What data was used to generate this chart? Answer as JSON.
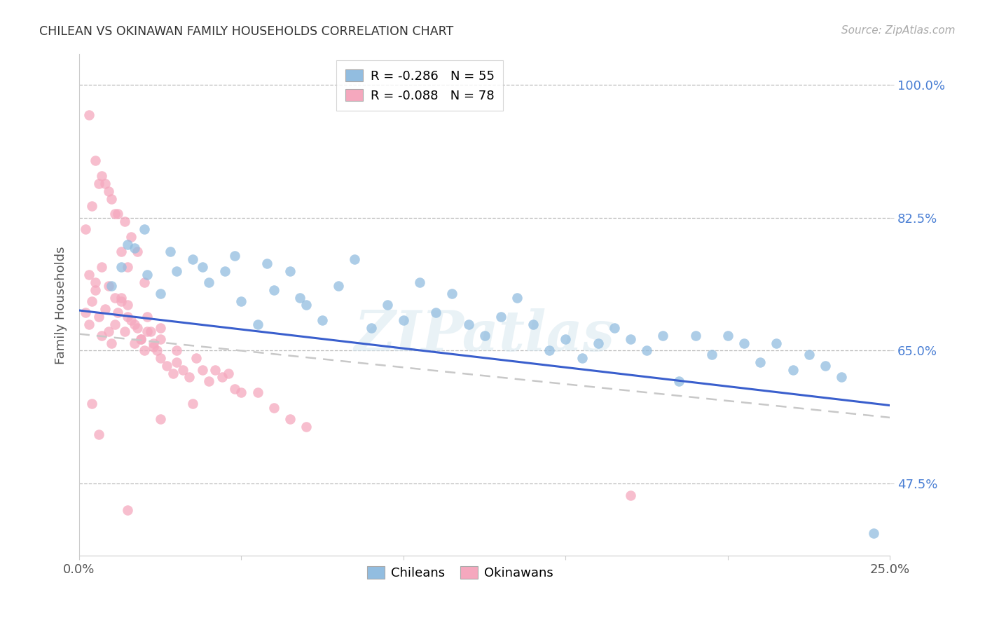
{
  "title": "CHILEAN VS OKINAWAN FAMILY HOUSEHOLDS CORRELATION CHART",
  "source": "Source: ZipAtlas.com",
  "ylabel": "Family Households",
  "watermark": "ZIPatlas",
  "xlim": [
    0.0,
    0.25
  ],
  "ylim": [
    0.38,
    1.04
  ],
  "xtick_positions": [
    0.0,
    0.05,
    0.1,
    0.15,
    0.2,
    0.25
  ],
  "xtick_labels": [
    "0.0%",
    "",
    "",
    "",
    "",
    "25.0%"
  ],
  "ytick_values": [
    0.475,
    0.65,
    0.825,
    1.0
  ],
  "ytick_labels": [
    "47.5%",
    "65.0%",
    "82.5%",
    "100.0%"
  ],
  "chilean_color": "#92bde0",
  "okinawan_color": "#f5a8be",
  "chilean_line_color": "#3a5fcd",
  "okinawan_line_color": "#c85080",
  "okinawan_dash_color": "#c8c8c8",
  "title_color": "#333333",
  "axis_label_color": "#555555",
  "tick_color_y": "#4a7fd4",
  "tick_color_x": "#555555",
  "grid_color": "#bbbbbb",
  "background": "#ffffff",
  "chilean_line_x0": 0.0,
  "chilean_line_y0": 0.703,
  "chilean_line_x1": 0.25,
  "chilean_line_y1": 0.578,
  "okinawan_line_x0": 0.0,
  "okinawan_line_y0": 0.672,
  "okinawan_line_x1": 0.25,
  "okinawan_line_y1": 0.562,
  "chilean_x": [
    0.01,
    0.013,
    0.017,
    0.021,
    0.025,
    0.03,
    0.035,
    0.04,
    0.045,
    0.05,
    0.055,
    0.06,
    0.065,
    0.07,
    0.075,
    0.08,
    0.085,
    0.09,
    0.095,
    0.1,
    0.105,
    0.11,
    0.115,
    0.12,
    0.125,
    0.13,
    0.135,
    0.14,
    0.145,
    0.15,
    0.155,
    0.16,
    0.165,
    0.17,
    0.175,
    0.18,
    0.185,
    0.19,
    0.195,
    0.2,
    0.205,
    0.21,
    0.215,
    0.22,
    0.225,
    0.23,
    0.235,
    0.015,
    0.02,
    0.028,
    0.038,
    0.048,
    0.058,
    0.245,
    0.068
  ],
  "chilean_y": [
    0.735,
    0.76,
    0.785,
    0.75,
    0.725,
    0.755,
    0.77,
    0.74,
    0.755,
    0.715,
    0.685,
    0.73,
    0.755,
    0.71,
    0.69,
    0.735,
    0.77,
    0.68,
    0.71,
    0.69,
    0.74,
    0.7,
    0.725,
    0.685,
    0.67,
    0.695,
    0.72,
    0.685,
    0.65,
    0.665,
    0.64,
    0.66,
    0.68,
    0.665,
    0.65,
    0.67,
    0.61,
    0.67,
    0.645,
    0.67,
    0.66,
    0.635,
    0.66,
    0.625,
    0.645,
    0.63,
    0.615,
    0.79,
    0.81,
    0.78,
    0.76,
    0.775,
    0.765,
    0.41,
    0.72
  ],
  "okinawan_x": [
    0.002,
    0.003,
    0.004,
    0.005,
    0.006,
    0.007,
    0.008,
    0.009,
    0.01,
    0.011,
    0.012,
    0.013,
    0.014,
    0.015,
    0.016,
    0.017,
    0.018,
    0.019,
    0.02,
    0.021,
    0.022,
    0.023,
    0.024,
    0.025,
    0.003,
    0.005,
    0.007,
    0.009,
    0.011,
    0.013,
    0.015,
    0.017,
    0.019,
    0.021,
    0.023,
    0.025,
    0.027,
    0.029,
    0.03,
    0.032,
    0.034,
    0.036,
    0.038,
    0.04,
    0.042,
    0.044,
    0.046,
    0.048,
    0.05,
    0.055,
    0.06,
    0.065,
    0.07,
    0.002,
    0.004,
    0.006,
    0.008,
    0.01,
    0.012,
    0.014,
    0.016,
    0.018,
    0.003,
    0.005,
    0.007,
    0.009,
    0.011,
    0.013,
    0.015,
    0.02,
    0.025,
    0.03,
    0.004,
    0.006,
    0.015,
    0.035,
    0.17,
    0.025
  ],
  "okinawan_y": [
    0.7,
    0.685,
    0.715,
    0.73,
    0.695,
    0.67,
    0.705,
    0.675,
    0.66,
    0.685,
    0.7,
    0.72,
    0.675,
    0.71,
    0.69,
    0.66,
    0.68,
    0.665,
    0.65,
    0.695,
    0.675,
    0.66,
    0.65,
    0.665,
    0.75,
    0.74,
    0.76,
    0.735,
    0.72,
    0.715,
    0.695,
    0.685,
    0.665,
    0.675,
    0.655,
    0.64,
    0.63,
    0.62,
    0.635,
    0.625,
    0.615,
    0.64,
    0.625,
    0.61,
    0.625,
    0.615,
    0.62,
    0.6,
    0.595,
    0.595,
    0.575,
    0.56,
    0.55,
    0.81,
    0.84,
    0.87,
    0.87,
    0.85,
    0.83,
    0.82,
    0.8,
    0.78,
    0.96,
    0.9,
    0.88,
    0.86,
    0.83,
    0.78,
    0.76,
    0.74,
    0.68,
    0.65,
    0.58,
    0.54,
    0.44,
    0.58,
    0.46,
    0.56
  ]
}
